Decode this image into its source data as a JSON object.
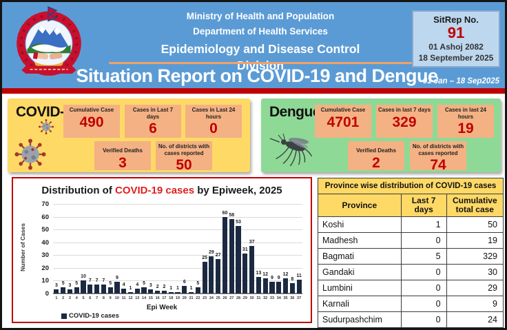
{
  "header": {
    "line1": "Ministry of Health and Population",
    "line2": "Department of Health Services",
    "line3": "Epidemiology and Disease Control Division",
    "title": "Situation Report on COVID-19 and Dengue",
    "date_range": "01 Jan – 18 Sep2025",
    "sitrep": {
      "label": "SitRep No.",
      "number": "91",
      "nepali_date": "01 Ashoj 2082",
      "english_date": "18 September 2025"
    }
  },
  "covid": {
    "title": "COVID-19",
    "stats": [
      {
        "label": "Cumulative Case",
        "value": "490"
      },
      {
        "label": "Cases in Last 7 days",
        "value": "6"
      },
      {
        "label": "Cases in Last 24 hours",
        "value": "0"
      },
      {
        "label": "Verified Deaths",
        "value": "3"
      },
      {
        "label": "No. of districts with cases reported",
        "value": "50"
      }
    ]
  },
  "dengue": {
    "title": "Dengue",
    "stats": [
      {
        "label": "Cumulative Case",
        "value": "4701"
      },
      {
        "label": "Cases in last 7 days",
        "value": "329"
      },
      {
        "label": "Cases in last 24 hours",
        "value": "19"
      },
      {
        "label": "Verified Deaths",
        "value": "2"
      },
      {
        "label": "No. of districts with cases reported",
        "value": "74"
      }
    ]
  },
  "chart_data": {
    "type": "bar",
    "title": "Distribution of COVID-19 cases by Epiweek, 2025",
    "title_prefix": "Distribution of ",
    "title_highlight": "COVID-19 cases",
    "title_suffix": " by Epiweek, 2025",
    "xlabel": "Epi Week",
    "ylabel": "Number of Cases",
    "ylim": [
      0,
      70
    ],
    "ytick_step": 10,
    "grid": true,
    "legend": "COVID-19 cases",
    "legend_position": "bottom-left",
    "bar_color": "#1b2a41",
    "categories": [
      "1",
      "2",
      "3",
      "4",
      "5",
      "6",
      "7",
      "8",
      "9",
      "10",
      "11",
      "12",
      "13",
      "14",
      "15",
      "16",
      "17",
      "18",
      "19",
      "20",
      "21",
      "22",
      "23",
      "24",
      "25",
      "26",
      "27",
      "28",
      "29",
      "30",
      "31",
      "32",
      "33",
      "34",
      "35",
      "36",
      "37"
    ],
    "values": [
      3,
      5,
      3,
      5,
      10,
      7,
      7,
      7,
      5,
      9,
      4,
      1,
      4,
      5,
      3,
      2,
      2,
      1,
      1,
      6,
      1,
      5,
      25,
      29,
      27,
      60,
      58,
      53,
      31,
      37,
      13,
      12,
      9,
      9,
      12,
      8,
      11
    ]
  },
  "province_table": {
    "title": "Province wise distribution of COVID-19 cases",
    "columns": [
      "Province",
      "Last 7 days",
      "Cumulative total case"
    ],
    "rows": [
      {
        "province": "Koshi",
        "last7": "1",
        "cumulative": "50"
      },
      {
        "province": "Madhesh",
        "last7": "0",
        "cumulative": "19"
      },
      {
        "province": "Bagmati",
        "last7": "5",
        "cumulative": "329"
      },
      {
        "province": "Gandaki",
        "last7": "0",
        "cumulative": "30"
      },
      {
        "province": "Lumbini",
        "last7": "0",
        "cumulative": "29"
      },
      {
        "province": "Karnali",
        "last7": "0",
        "cumulative": "9"
      },
      {
        "province": "Sudurpashchim",
        "last7": "0",
        "cumulative": "24"
      }
    ]
  },
  "colors": {
    "header_blue": "#5b9bd5",
    "accent_red": "#c00000",
    "covid_yellow": "#ffd966",
    "dengue_green": "#8fd996",
    "stat_card_salmon": "#f4b183",
    "bar_navy": "#1b2a41",
    "sitrep_bg": "#bdd7ee",
    "divider_orange": "#f0a268"
  }
}
